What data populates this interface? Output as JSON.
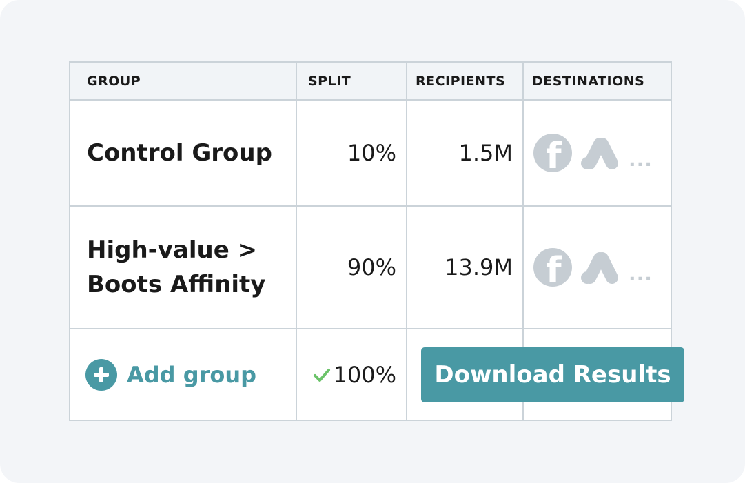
{
  "table": {
    "headers": [
      "GROUP",
      "SPLIT",
      "RECIPIENTS",
      "DESTINATIONS"
    ],
    "rows": [
      {
        "group": "Control Group",
        "split": "10%",
        "recipients": "1.5M",
        "destinations": [
          "facebook-icon",
          "google-ads-icon"
        ],
        "more": "..."
      },
      {
        "group": "High-value >\nBoots Affinity",
        "split": "90%",
        "recipients": "13.9M",
        "destinations": [
          "facebook-icon",
          "google-ads-icon"
        ],
        "more": "..."
      }
    ],
    "footer": {
      "add_label": "Add group",
      "total_split": "100%"
    }
  },
  "actions": {
    "download_label": "Download Results"
  },
  "colors": {
    "accent": "#4999a4",
    "check": "#6cc36a",
    "icon_gray": "#c6cdd3",
    "border": "#cbd3d9",
    "background": "#f3f5f8"
  }
}
